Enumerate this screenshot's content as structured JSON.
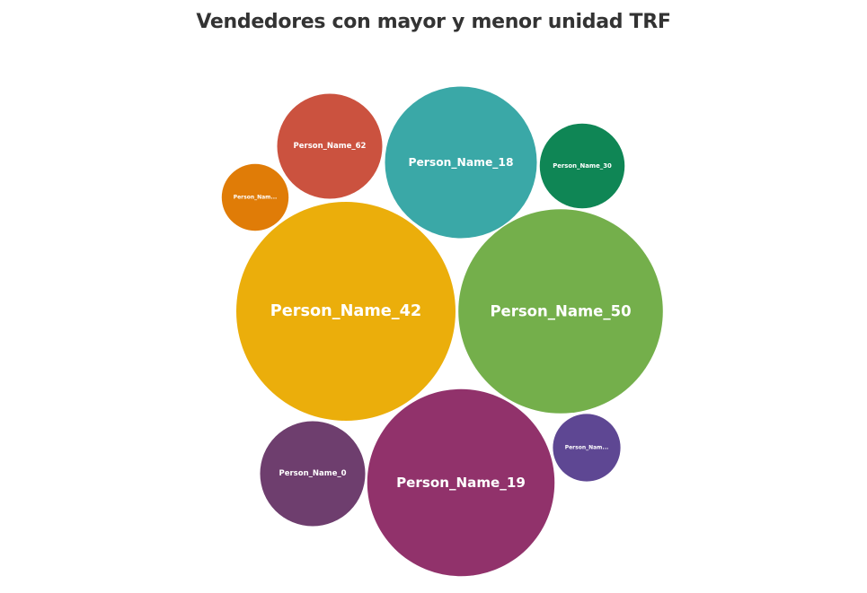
{
  "chart_data": {
    "type": "bubble",
    "title": "Vendedores con mayor y menor unidad TRF",
    "colors": {
      "text": "#333333",
      "label": "#ffffff"
    },
    "bubbles": [
      {
        "name": "Person_Name_42",
        "label": "Person_Name_42",
        "value": 100,
        "color": "#EBAE0B"
      },
      {
        "name": "Person_Name_50",
        "label": "Person_Name_50",
        "value": 87,
        "color": "#74AF4B"
      },
      {
        "name": "Person_Name_19",
        "label": "Person_Name_19",
        "value": 73,
        "color": "#91326B"
      },
      {
        "name": "Person_Name_18",
        "label": "Person_Name_18",
        "value": 48,
        "color": "#3AA8A7"
      },
      {
        "name": "Person_Name_0",
        "label": "Person_Name_0",
        "value": 23,
        "color": "#6E3E6E"
      },
      {
        "name": "Person_Name_62",
        "label": "Person_Name_62",
        "value": 23,
        "color": "#CB523F"
      },
      {
        "name": "Person_Name_30",
        "label": "Person_Name_30",
        "value": 15,
        "color": "#0F8655"
      },
      {
        "name": "Person_Nam...",
        "label": "Person_Nam...",
        "value": 9.5,
        "color": "#5E4793"
      },
      {
        "name": "Person_Nam...",
        "label": "Person_Nam...",
        "value": 9.3,
        "color": "#E07C07"
      }
    ]
  }
}
